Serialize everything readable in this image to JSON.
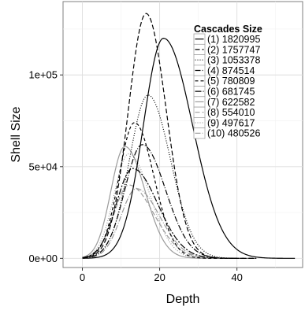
{
  "chart_data": {
    "type": "line",
    "title": "",
    "xlabel": "Depth",
    "ylabel": "Shell Size",
    "xlim": [
      -5,
      57
    ],
    "ylim": [
      -5000,
      140000
    ],
    "x_ticks": [
      0,
      20,
      40
    ],
    "x_tick_labels": [
      "0",
      "20",
      "40"
    ],
    "y_ticks": [
      0,
      50000,
      100000
    ],
    "y_tick_labels": [
      "0e+00",
      "5e+04",
      "1e+05"
    ],
    "grid": true,
    "legend": {
      "title": "Cascades Size",
      "placement": "top-right (inside)"
    },
    "series": [
      {
        "name": "(1) 1820995",
        "dash": "solid",
        "color": "#000000",
        "mu": 21.0,
        "peak": 120000,
        "sl": 5.2,
        "sr": 7.5,
        "end": 55
      },
      {
        "name": "(2) 1757747",
        "dash": "6,3",
        "color": "#000000",
        "mu": 16.5,
        "peak": 133500,
        "sl": 4.6,
        "sr": 5.2,
        "end": 45
      },
      {
        "name": "(3) 1053378",
        "dash": "1,2",
        "color": "#000000",
        "mu": 17.0,
        "peak": 89000,
        "sl": 4.8,
        "sr": 5.8,
        "end": 45
      },
      {
        "name": "(4) 874514",
        "dash": "7,2,1,2",
        "color": "#000000",
        "mu": 15.5,
        "peak": 62000,
        "sl": 4.5,
        "sr": 6.0,
        "end": 45
      },
      {
        "name": "(5) 780809",
        "dash": "4,3",
        "color": "#000000",
        "mu": 13.5,
        "peak": 74000,
        "sl": 4.0,
        "sr": 5.0,
        "end": 40
      },
      {
        "name": "(6) 681745",
        "dash": "8,2,2,2",
        "color": "#000000",
        "mu": 13.0,
        "peak": 49000,
        "sl": 4.2,
        "sr": 6.5,
        "end": 40
      },
      {
        "name": "(7) 622582",
        "dash": "solid",
        "color": "#9a9a9a",
        "mu": 11.0,
        "peak": 61000,
        "sl": 3.6,
        "sr": 5.2,
        "end": 35
      },
      {
        "name": "(8) 554010",
        "dash": "6,3",
        "color": "#9a9a9a",
        "mu": 12.0,
        "peak": 40000,
        "sl": 3.8,
        "sr": 6.5,
        "end": 35
      },
      {
        "name": "(9) 497617",
        "dash": "1,2",
        "color": "#9a9a9a",
        "mu": 12.0,
        "peak": 57000,
        "sl": 3.8,
        "sr": 5.5,
        "end": 35
      },
      {
        "name": "(10) 480526",
        "dash": "7,2,1,2",
        "color": "#9a9a9a",
        "mu": 14.0,
        "peak": 38000,
        "sl": 4.0,
        "sr": 6.0,
        "end": 35
      }
    ]
  }
}
